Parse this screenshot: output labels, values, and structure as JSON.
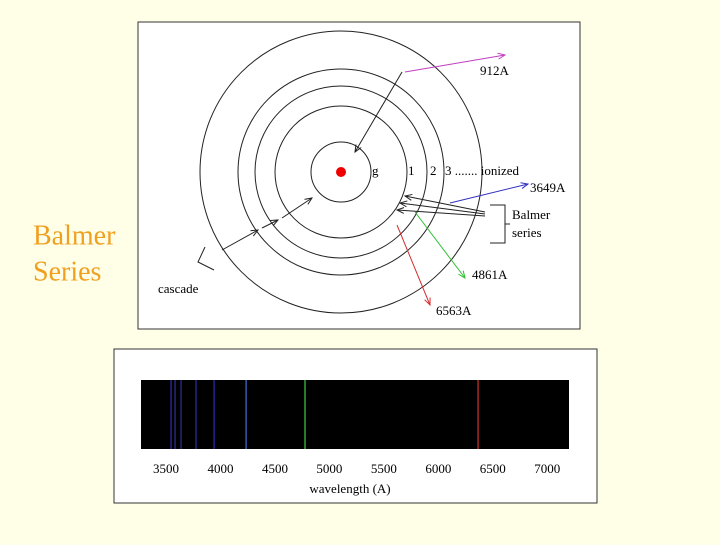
{
  "side_label": {
    "line1": "Balmer",
    "line2": "Series"
  },
  "diagram": {
    "labels": {
      "ionization": "912A",
      "ground": "g",
      "level1": "1",
      "level2": "2",
      "level3": "3 ....... ionized",
      "line_3649": "3649A",
      "balmer1": "Balmer",
      "balmer2": "series",
      "line_4861": "4861A",
      "line_6563": "6563A",
      "cascade": "cascade"
    }
  },
  "spectrum": {
    "xlim": [
      3270,
      7200
    ],
    "xticks": [
      3500,
      4000,
      4500,
      5000,
      5500,
      6000,
      6500,
      7000
    ],
    "xlabel": "wavelength (A)",
    "lines": [
      {
        "wavelength": 3546,
        "color": "#2a2a9a"
      },
      {
        "wavelength": 3583,
        "color": "#2a2a9a"
      },
      {
        "wavelength": 3638,
        "color": "#2a2a9a"
      },
      {
        "wavelength": 3775,
        "color": "#2a2a9a"
      },
      {
        "wavelength": 3941,
        "color": "#2a2aa8"
      },
      {
        "wavelength": 4235,
        "color": "#3a6ad0"
      },
      {
        "wavelength": 4776,
        "color": "#3cbf3c"
      },
      {
        "wavelength": 6365,
        "color": "#c0302a"
      }
    ]
  }
}
